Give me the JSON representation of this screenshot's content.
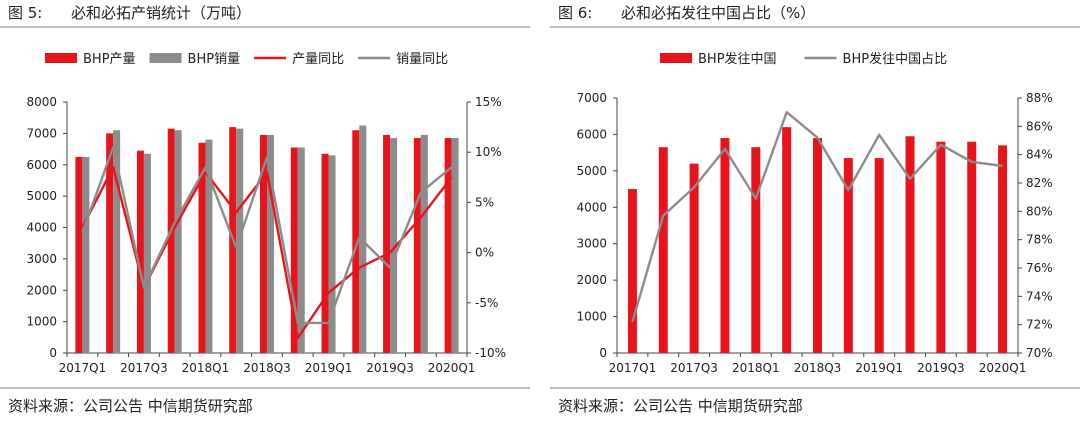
{
  "figures": [
    {
      "title_prefix": "图 5:",
      "title_text": "必和必拓产销统计（万吨）",
      "source": "资料来源：公司公告  中信期货研究部",
      "colors": {
        "bar1": "#e8141c",
        "bar2": "#8c8c8c",
        "line1": "#e8141c",
        "line2": "#8c8c8c"
      }
    },
    {
      "title_prefix": "图 6:",
      "title_text": "必和必拓发往中国占比（%）",
      "source": "资料来源：公司公告  中信期货研究部",
      "colors": {
        "bar1": "#e8141c",
        "line1": "#8c8c8c"
      }
    }
  ],
  "chart_data": [
    {
      "type": "bar",
      "categories": [
        "2017Q1",
        "2017Q2",
        "2017Q3",
        "2017Q4",
        "2018Q1",
        "2018Q2",
        "2018Q3",
        "2018Q4",
        "2019Q1",
        "2019Q2",
        "2019Q3",
        "2019Q4",
        "2020Q1"
      ],
      "tick_labels": [
        "2017Q1",
        "2017Q3",
        "2018Q1",
        "2018Q3",
        "2019Q1",
        "2019Q3",
        "2020Q1"
      ],
      "legend": [
        "BHP产量",
        "BHP销量",
        "产量同比",
        "销量同比"
      ],
      "legend_position": "top",
      "series": [
        {
          "name": "BHP产量",
          "type": "bar",
          "axis": "left",
          "values": [
            6250,
            7000,
            6450,
            7150,
            6700,
            7200,
            6950,
            6550,
            6350,
            7100,
            6950,
            6850,
            6850
          ]
        },
        {
          "name": "BHP销量",
          "type": "bar",
          "axis": "left",
          "values": [
            6250,
            7100,
            6350,
            7100,
            6800,
            7150,
            6950,
            6550,
            6300,
            7250,
            6850,
            6950,
            6850
          ]
        },
        {
          "name": "产量同比",
          "type": "line",
          "axis": "right",
          "values": [
            2.5,
            8.5,
            -3.5,
            2.5,
            8.0,
            4.0,
            8.0,
            -8.5,
            -4.0,
            -1.5,
            0.0,
            3.5,
            7.5
          ]
        },
        {
          "name": "销量同比",
          "type": "line",
          "axis": "right",
          "values": [
            2.0,
            10.5,
            -3.5,
            3.0,
            8.5,
            0.5,
            9.5,
            -7.0,
            -7.0,
            1.5,
            -1.5,
            6.0,
            8.5
          ]
        }
      ],
      "yleft": {
        "min": 0,
        "max": 8000,
        "ticks": [
          0,
          1000,
          2000,
          3000,
          4000,
          5000,
          6000,
          7000,
          8000
        ],
        "tick_labels": [
          "0",
          "1000",
          "2000",
          "3000",
          "4000",
          "5000",
          "6000",
          "7000",
          "8000"
        ]
      },
      "yright": {
        "min": -10,
        "max": 15,
        "ticks": [
          -10,
          -5,
          0,
          5,
          10,
          15
        ],
        "tick_labels": [
          "-10%",
          "-5%",
          "0%",
          "5%",
          "10%",
          "15%"
        ]
      },
      "grid": false
    },
    {
      "type": "bar",
      "categories": [
        "2017Q1",
        "2017Q2",
        "2017Q3",
        "2017Q4",
        "2018Q1",
        "2018Q2",
        "2018Q3",
        "2018Q4",
        "2019Q1",
        "2019Q2",
        "2019Q3",
        "2019Q4",
        "2020Q1"
      ],
      "tick_labels": [
        "2017Q1",
        "2017Q3",
        "2018Q1",
        "2018Q3",
        "2019Q1",
        "2019Q3",
        "2020Q1"
      ],
      "legend": [
        "BHP发往中国",
        "BHP发往中国占比"
      ],
      "legend_position": "top",
      "series": [
        {
          "name": "BHP发往中国",
          "type": "bar",
          "axis": "left",
          "values": [
            4500,
            5650,
            5200,
            5900,
            5650,
            6200,
            5900,
            5350,
            5350,
            5950,
            5800,
            5800,
            5700
          ]
        },
        {
          "name": "BHP发往中国占比",
          "type": "line",
          "axis": "right",
          "values": [
            72.2,
            79.7,
            81.7,
            84.4,
            80.9,
            87.0,
            85.2,
            81.5,
            85.4,
            82.3,
            84.7,
            83.5,
            83.2
          ]
        }
      ],
      "yleft": {
        "min": 0,
        "max": 7000,
        "ticks": [
          0,
          1000,
          2000,
          3000,
          4000,
          5000,
          6000,
          7000
        ],
        "tick_labels": [
          "0",
          "1000",
          "2000",
          "3000",
          "4000",
          "5000",
          "6000",
          "7000"
        ]
      },
      "yright": {
        "min": 70,
        "max": 88,
        "ticks": [
          70,
          72,
          74,
          76,
          78,
          80,
          82,
          84,
          86,
          88
        ],
        "tick_labels": [
          "70%",
          "72%",
          "74%",
          "76%",
          "78%",
          "80%",
          "82%",
          "84%",
          "86%",
          "88%"
        ]
      },
      "grid": false
    }
  ]
}
